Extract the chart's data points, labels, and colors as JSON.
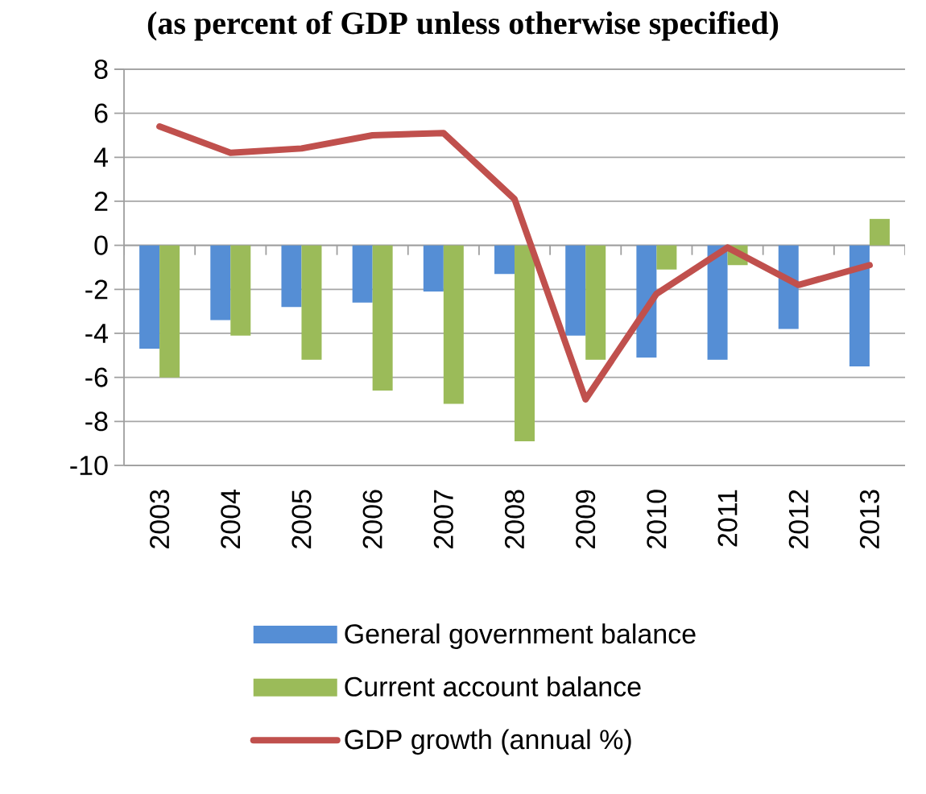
{
  "chart_data": {
    "type": "bar",
    "title": "(as percent of GDP unless otherwise specified)",
    "categories": [
      "2003",
      "2004",
      "2005",
      "2006",
      "2007",
      "2008",
      "2009",
      "2010",
      "2011",
      "2012",
      "2013"
    ],
    "series": [
      {
        "name": "General government balance",
        "color": "#558ed5",
        "values": [
          -4.7,
          -3.4,
          -2.8,
          -2.6,
          -2.1,
          -1.3,
          -4.1,
          -5.1,
          -5.2,
          -3.8,
          -5.5
        ]
      },
      {
        "name": "Current account balance",
        "color": "#9bbb59",
        "values": [
          -6.0,
          -4.1,
          -5.2,
          -6.6,
          -7.2,
          -8.9,
          -5.2,
          -1.1,
          -0.9,
          null,
          1.2
        ]
      },
      {
        "name": "GDP growth (annual %)",
        "type": "line",
        "color": "#c0504d",
        "values": [
          5.4,
          4.2,
          4.4,
          5.0,
          5.1,
          2.1,
          -7.0,
          -2.2,
          -0.1,
          -1.8,
          -0.9
        ]
      }
    ],
    "ylim": [
      -10,
      8
    ],
    "yticks": [
      -10,
      -8,
      -6,
      -4,
      -2,
      0,
      2,
      4,
      6,
      8
    ],
    "grid": "y",
    "legend": "bottom"
  }
}
